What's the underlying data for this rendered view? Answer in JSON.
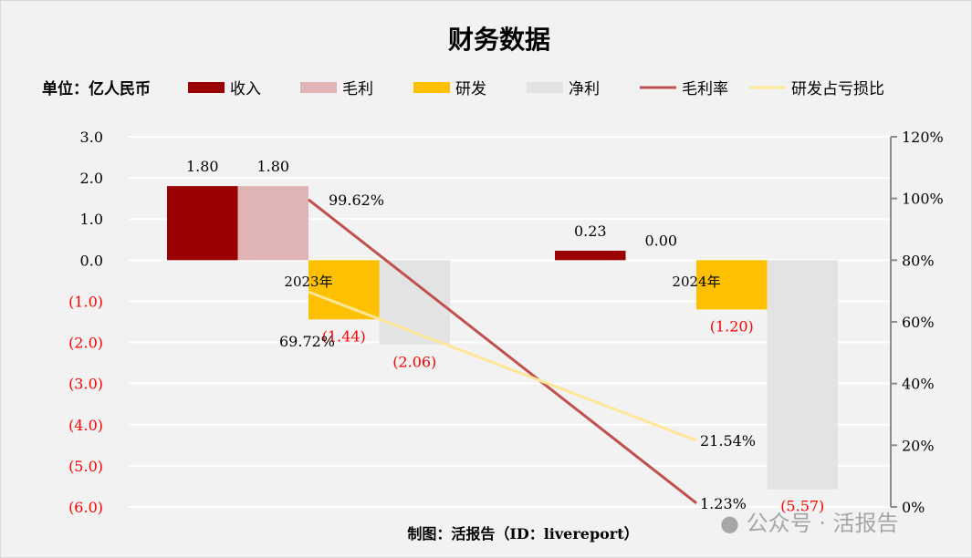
{
  "chart_data": {
    "type": "bar+line",
    "title": "财务数据",
    "unit_label": "单位：亿人民币",
    "categories": [
      "2023年",
      "2024年"
    ],
    "series": [
      {
        "name": "收入",
        "type": "bar",
        "color": "#990000",
        "values": [
          1.8,
          0.23
        ],
        "labels": [
          "1.80",
          "0.23"
        ]
      },
      {
        "name": "毛利",
        "type": "bar",
        "color": "#e0b4b4",
        "values": [
          1.8,
          0.0
        ],
        "labels": [
          "1.80",
          "0.00"
        ]
      },
      {
        "name": "研发",
        "type": "bar",
        "color": "#ffc000",
        "values": [
          -1.44,
          -1.2
        ],
        "labels": [
          "(1.44)",
          "(1.20)"
        ]
      },
      {
        "name": "净利",
        "type": "bar",
        "color": "#e3e3e3",
        "values": [
          -2.06,
          -5.57
        ],
        "labels": [
          "(2.06)",
          "(5.57)"
        ]
      },
      {
        "name": "毛利率",
        "type": "line",
        "axis": "right",
        "color": "#c0504d",
        "values": [
          99.62,
          1.23
        ],
        "labels": [
          "99.62%",
          "1.23%"
        ]
      },
      {
        "name": "研发占亏损比",
        "type": "line",
        "axis": "right",
        "color": "#ffe699",
        "values": [
          69.72,
          21.54
        ],
        "labels": [
          "69.72%",
          "21.54%"
        ]
      }
    ],
    "y_left": {
      "range": [
        -6.0,
        3.0
      ],
      "ticks": [
        "3.0",
        "2.0",
        "1.0",
        "0.0",
        "(1.0)",
        "(2.0)",
        "(3.0)",
        "(4.0)",
        "(5.0)",
        "(6.0)"
      ],
      "negative_color": "#ff0000"
    },
    "y_right": {
      "range": [
        0,
        120
      ],
      "ticks": [
        "120%",
        "100%",
        "80%",
        "60%",
        "40%",
        "20%",
        "0%"
      ]
    },
    "grid": true,
    "legend_position": "top"
  },
  "footer": "制图：活报告（ID：livereport）",
  "watermark": "公众号 · 活报告"
}
